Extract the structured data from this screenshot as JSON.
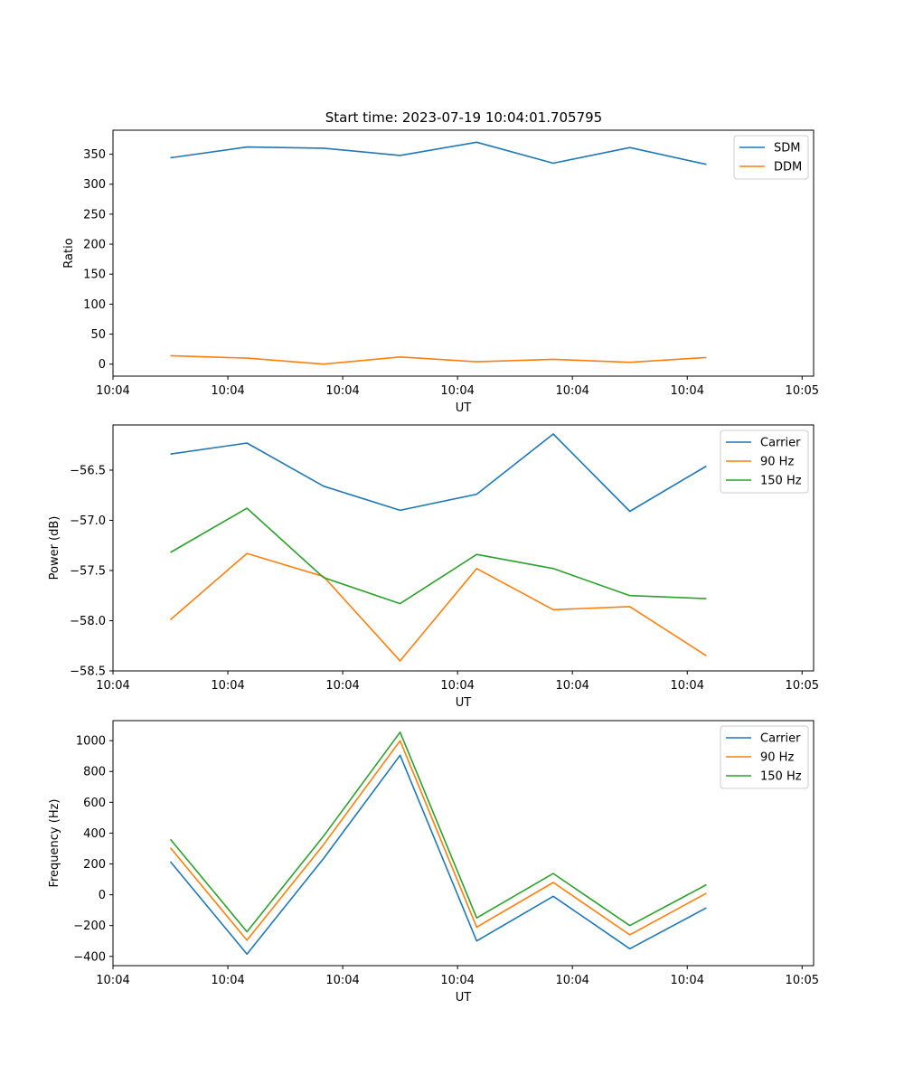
{
  "figure_title": "Start time: 2023-07-19 10:04:01.705795",
  "chart_data": [
    {
      "type": "line",
      "title": "Start time: 2023-07-19 10:04:01.705795",
      "xlabel": "UT",
      "ylabel": "Ratio",
      "x": [
        0,
        1,
        2,
        3,
        4,
        5,
        6,
        7
      ],
      "xlim": [
        -0.75,
        8.4
      ],
      "ylim": [
        -20,
        390
      ],
      "xticks": [
        {
          "pos": -0.75,
          "label": "10:04"
        },
        {
          "pos": 0.75,
          "label": "10:04"
        },
        {
          "pos": 2.25,
          "label": "10:04"
        },
        {
          "pos": 3.75,
          "label": "10:04"
        },
        {
          "pos": 5.25,
          "label": "10:04"
        },
        {
          "pos": 6.75,
          "label": "10:04"
        },
        {
          "pos": 8.25,
          "label": "10:05"
        }
      ],
      "yticks": [
        {
          "pos": 0,
          "label": "0"
        },
        {
          "pos": 50,
          "label": "50"
        },
        {
          "pos": 100,
          "label": "100"
        },
        {
          "pos": 150,
          "label": "150"
        },
        {
          "pos": 200,
          "label": "200"
        },
        {
          "pos": 250,
          "label": "250"
        },
        {
          "pos": 300,
          "label": "300"
        },
        {
          "pos": 350,
          "label": "350"
        }
      ],
      "legend": "top-right",
      "series": [
        {
          "name": "SDM",
          "color": "#1f77b4",
          "values": [
            344,
            362,
            360,
            348,
            370,
            335,
            361,
            333
          ]
        },
        {
          "name": "DDM",
          "color": "#ff7f0e",
          "values": [
            14,
            10,
            0,
            12,
            4,
            8,
            3,
            11
          ]
        }
      ]
    },
    {
      "type": "line",
      "title": "",
      "xlabel": "UT",
      "ylabel": "Power (dB)",
      "x": [
        0,
        1,
        2,
        3,
        4,
        5,
        6,
        7
      ],
      "xlim": [
        -0.75,
        8.4
      ],
      "ylim": [
        -58.5,
        -56.05
      ],
      "xticks": [
        {
          "pos": -0.75,
          "label": "10:04"
        },
        {
          "pos": 0.75,
          "label": "10:04"
        },
        {
          "pos": 2.25,
          "label": "10:04"
        },
        {
          "pos": 3.75,
          "label": "10:04"
        },
        {
          "pos": 5.25,
          "label": "10:04"
        },
        {
          "pos": 6.75,
          "label": "10:04"
        },
        {
          "pos": 8.25,
          "label": "10:05"
        }
      ],
      "yticks": [
        {
          "pos": -56.5,
          "label": "−56.5"
        },
        {
          "pos": -57.0,
          "label": "−57.0"
        },
        {
          "pos": -57.5,
          "label": "−57.5"
        },
        {
          "pos": -58.0,
          "label": "−58.0"
        },
        {
          "pos": -58.5,
          "label": "−58.5"
        }
      ],
      "legend": "top-right",
      "series": [
        {
          "name": "Carrier",
          "color": "#1f77b4",
          "values": [
            -56.34,
            -56.23,
            -56.66,
            -56.9,
            -56.74,
            -56.14,
            -56.91,
            -56.46
          ]
        },
        {
          "name": "90 Hz",
          "color": "#ff7f0e",
          "values": [
            -57.99,
            -57.33,
            -57.56,
            -58.4,
            -57.48,
            -57.89,
            -57.86,
            -58.35
          ]
        },
        {
          "name": "150 Hz",
          "color": "#2ca02c",
          "values": [
            -57.32,
            -56.88,
            -57.57,
            -57.83,
            -57.34,
            -57.48,
            -57.75,
            -57.78
          ]
        }
      ]
    },
    {
      "type": "line",
      "title": "",
      "xlabel": "UT",
      "ylabel": "Frequency (Hz)",
      "x": [
        0,
        1,
        2,
        3,
        4,
        5,
        6,
        7
      ],
      "xlim": [
        -0.75,
        8.4
      ],
      "ylim": [
        -460,
        1130
      ],
      "xticks": [
        {
          "pos": -0.75,
          "label": "10:04"
        },
        {
          "pos": 0.75,
          "label": "10:04"
        },
        {
          "pos": 2.25,
          "label": "10:04"
        },
        {
          "pos": 3.75,
          "label": "10:04"
        },
        {
          "pos": 5.25,
          "label": "10:04"
        },
        {
          "pos": 6.75,
          "label": "10:04"
        },
        {
          "pos": 8.25,
          "label": "10:05"
        }
      ],
      "yticks": [
        {
          "pos": -400,
          "label": "−400"
        },
        {
          "pos": -200,
          "label": "−200"
        },
        {
          "pos": 0,
          "label": "0"
        },
        {
          "pos": 200,
          "label": "200"
        },
        {
          "pos": 400,
          "label": "400"
        },
        {
          "pos": 600,
          "label": "600"
        },
        {
          "pos": 800,
          "label": "800"
        },
        {
          "pos": 1000,
          "label": "1000"
        }
      ],
      "legend": "top-right",
      "series": [
        {
          "name": "Carrier",
          "color": "#1f77b4",
          "values": [
            215,
            -385,
            235,
            905,
            -300,
            -10,
            -350,
            -85
          ]
        },
        {
          "name": "90 Hz",
          "color": "#ff7f0e",
          "values": [
            305,
            -295,
            325,
            1000,
            -210,
            80,
            -260,
            10
          ]
        },
        {
          "name": "150 Hz",
          "color": "#2ca02c",
          "values": [
            360,
            -240,
            380,
            1055,
            -150,
            138,
            -200,
            65
          ]
        }
      ]
    }
  ]
}
